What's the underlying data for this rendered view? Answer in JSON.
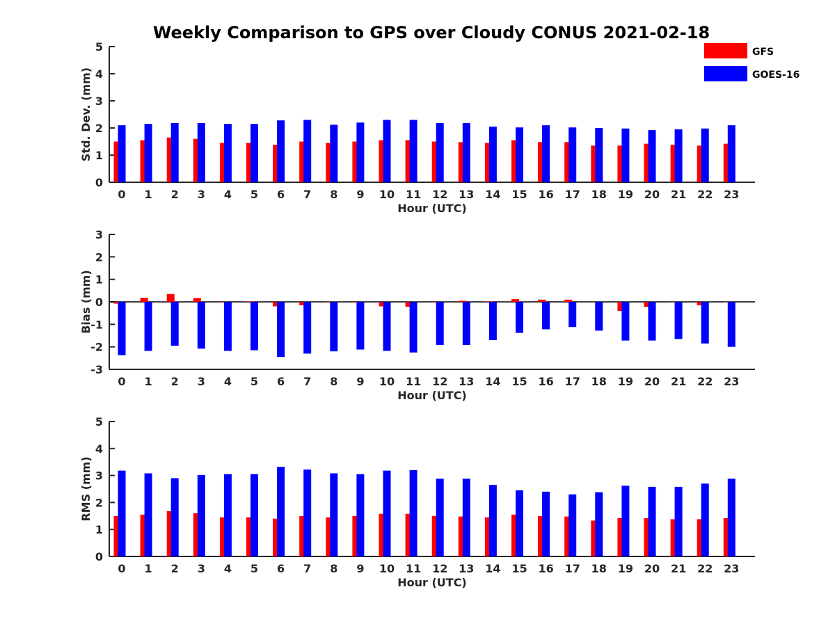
{
  "title": "Weekly Comparison to GPS over Cloudy CONUS 2021-02-18",
  "colors": {
    "GFS": "#ff0000",
    "GOES-16": "#0000ff",
    "axis": "#262626"
  },
  "legend": [
    {
      "name": "GFS",
      "color": "#ff0000"
    },
    {
      "name": "GOES-16",
      "color": "#0000ff"
    }
  ],
  "chart_data": [
    {
      "type": "bar",
      "title": "Weekly Comparison to GPS over Cloudy CONUS 2021-02-18",
      "xlabel": "Hour (UTC)",
      "ylabel": "Std. Dev. (mm)",
      "ylim": [
        0,
        5
      ],
      "yticks": [
        0,
        1,
        2,
        3,
        4,
        5
      ],
      "categories": [
        "0",
        "1",
        "2",
        "3",
        "4",
        "5",
        "6",
        "7",
        "8",
        "9",
        "10",
        "11",
        "12",
        "13",
        "14",
        "15",
        "16",
        "17",
        "18",
        "19",
        "20",
        "21",
        "22",
        "23"
      ],
      "series": [
        {
          "name": "GFS",
          "color": "#ff0000",
          "values": [
            1.5,
            1.55,
            1.65,
            1.6,
            1.45,
            1.45,
            1.38,
            1.5,
            1.45,
            1.5,
            1.55,
            1.55,
            1.5,
            1.48,
            1.45,
            1.55,
            1.48,
            1.48,
            1.35,
            1.35,
            1.42,
            1.38,
            1.35,
            1.42
          ]
        },
        {
          "name": "GOES-16",
          "color": "#0000ff",
          "values": [
            2.1,
            2.15,
            2.18,
            2.18,
            2.15,
            2.15,
            2.28,
            2.3,
            2.12,
            2.2,
            2.3,
            2.3,
            2.18,
            2.18,
            2.05,
            2.02,
            2.1,
            2.02,
            2.0,
            1.98,
            1.92,
            1.95,
            1.98,
            2.1
          ]
        }
      ],
      "legend_position": "top-right"
    },
    {
      "type": "bar",
      "xlabel": "Hour (UTC)",
      "ylabel": "Bias (mm)",
      "ylim": [
        -3,
        3
      ],
      "yticks": [
        -3,
        -2,
        -1,
        0,
        1,
        2,
        3
      ],
      "categories": [
        "0",
        "1",
        "2",
        "3",
        "4",
        "5",
        "6",
        "7",
        "8",
        "9",
        "10",
        "11",
        "12",
        "13",
        "14",
        "15",
        "16",
        "17",
        "18",
        "19",
        "20",
        "21",
        "22",
        "23"
      ],
      "series": [
        {
          "name": "GFS",
          "color": "#ff0000",
          "values": [
            -0.08,
            0.18,
            0.35,
            0.17,
            -0.02,
            0.02,
            -0.2,
            -0.15,
            0,
            -0.02,
            -0.2,
            -0.22,
            0,
            0.05,
            0.02,
            0.12,
            0.1,
            0.1,
            0,
            -0.4,
            -0.22,
            0,
            -0.15,
            0
          ]
        },
        {
          "name": "GOES-16",
          "color": "#0000ff",
          "values": [
            -2.37,
            -2.18,
            -1.95,
            -2.08,
            -2.18,
            -2.15,
            -2.45,
            -2.3,
            -2.2,
            -2.12,
            -2.18,
            -2.25,
            -1.92,
            -1.92,
            -1.7,
            -1.38,
            -1.22,
            -1.12,
            -1.28,
            -1.72,
            -1.72,
            -1.65,
            -1.85,
            -2.0
          ]
        }
      ]
    },
    {
      "type": "bar",
      "xlabel": "Hour (UTC)",
      "ylabel": "RMS (mm)",
      "ylim": [
        0,
        5
      ],
      "yticks": [
        0,
        1,
        2,
        3,
        4,
        5
      ],
      "categories": [
        "0",
        "1",
        "2",
        "3",
        "4",
        "5",
        "6",
        "7",
        "8",
        "9",
        "10",
        "11",
        "12",
        "13",
        "14",
        "15",
        "16",
        "17",
        "18",
        "19",
        "20",
        "21",
        "22",
        "23"
      ],
      "series": [
        {
          "name": "GFS",
          "color": "#ff0000",
          "values": [
            1.5,
            1.55,
            1.68,
            1.6,
            1.45,
            1.45,
            1.4,
            1.5,
            1.45,
            1.5,
            1.58,
            1.58,
            1.5,
            1.48,
            1.45,
            1.55,
            1.5,
            1.48,
            1.33,
            1.42,
            1.42,
            1.38,
            1.38,
            1.42
          ]
        },
        {
          "name": "GOES-16",
          "color": "#0000ff",
          "values": [
            3.18,
            3.08,
            2.9,
            3.02,
            3.05,
            3.05,
            3.32,
            3.22,
            3.08,
            3.05,
            3.18,
            3.2,
            2.88,
            2.88,
            2.65,
            2.45,
            2.4,
            2.3,
            2.38,
            2.62,
            2.58,
            2.58,
            2.7,
            2.88
          ]
        }
      ]
    }
  ]
}
